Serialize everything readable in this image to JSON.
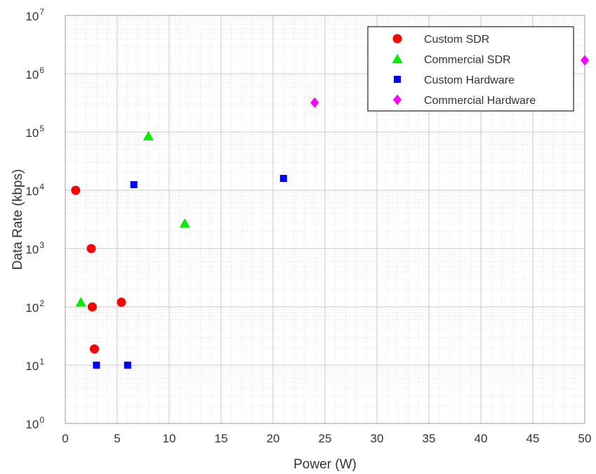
{
  "chart_data": {
    "type": "scatter",
    "title": "",
    "xlabel": "Power (W)",
    "ylabel": "Data Rate (kbps)",
    "xlim": [
      0,
      50
    ],
    "ylim": [
      1,
      10000000
    ],
    "yscale": "log",
    "grid": true,
    "legend_position": "top-right",
    "xticks": [
      0,
      5,
      10,
      15,
      20,
      25,
      30,
      35,
      40,
      45,
      50
    ],
    "xtick_labels": [
      "0",
      "5",
      "10",
      "15",
      "20",
      "25",
      "30",
      "35",
      "40",
      "45",
      "50"
    ],
    "ytick_exponents": [
      0,
      1,
      2,
      3,
      4,
      5,
      6,
      7
    ],
    "ytick_base": "10",
    "series": [
      {
        "name": "Custom SDR",
        "marker": "circle",
        "color": "#ff0000",
        "points": [
          {
            "x": 1.0,
            "y": 10000
          },
          {
            "x": 2.5,
            "y": 1000
          },
          {
            "x": 2.6,
            "y": 100
          },
          {
            "x": 2.8,
            "y": 19
          },
          {
            "x": 5.4,
            "y": 120
          }
        ]
      },
      {
        "name": "Commercial SDR",
        "marker": "triangle",
        "color": "#00ee00",
        "points": [
          {
            "x": 1.5,
            "y": 120
          },
          {
            "x": 8.0,
            "y": 85000
          },
          {
            "x": 11.5,
            "y": 2700
          }
        ]
      },
      {
        "name": "Custom Hardware",
        "marker": "square",
        "color": "#0000ff",
        "points": [
          {
            "x": 3.0,
            "y": 10
          },
          {
            "x": 6.0,
            "y": 10
          },
          {
            "x": 6.6,
            "y": 12500
          },
          {
            "x": 21.0,
            "y": 16000
          }
        ]
      },
      {
        "name": "Commercial Hardware",
        "marker": "diamond",
        "color": "#ff00ff",
        "points": [
          {
            "x": 24.0,
            "y": 320000
          },
          {
            "x": 50.0,
            "y": 1700000
          }
        ]
      }
    ]
  }
}
